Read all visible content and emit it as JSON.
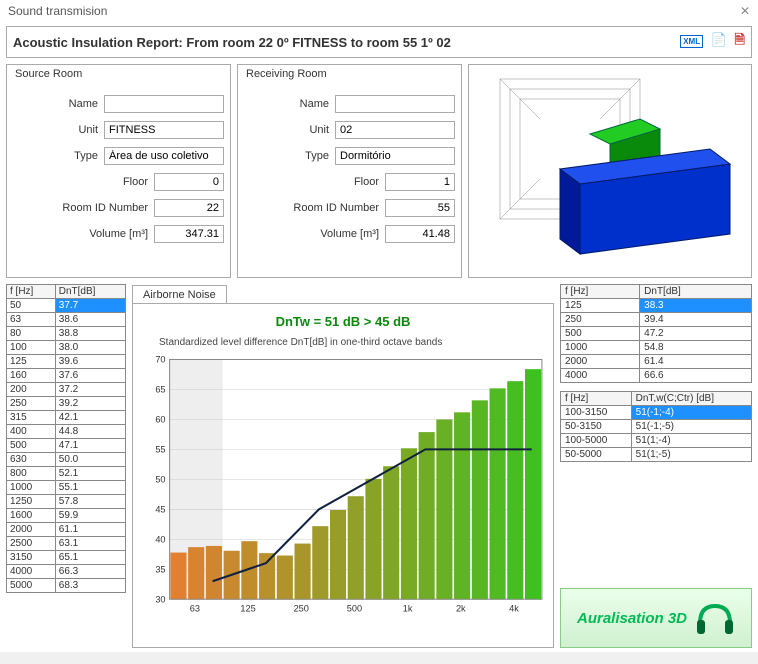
{
  "window": {
    "title": "Sound transmision"
  },
  "report": {
    "title": "Acoustic Insulation Report: From room 22  0º FITNESS to room 55  1º 02"
  },
  "source_room": {
    "panel_title": "Source Room",
    "labels": {
      "name": "Name",
      "unit": "Unit",
      "type": "Type",
      "floor": "Floor",
      "room_id": "Room ID Number",
      "volume": "Volume [m³]"
    },
    "name": "",
    "unit": "FITNESS",
    "type": "Área de uso coletivo",
    "floor": "0",
    "room_id": "22",
    "volume": "347.31"
  },
  "receiving_room": {
    "panel_title": "Receiving Room",
    "labels": {
      "name": "Name",
      "unit": "Unit",
      "type": "Type",
      "floor": "Floor",
      "room_id": "Room ID Number",
      "volume": "Volume [m³]"
    },
    "name": "",
    "unit": "02",
    "type": "Dormitório",
    "floor": "1",
    "room_id": "55",
    "volume": "41.48"
  },
  "left_table": {
    "headers": [
      "f [Hz]",
      "DnT[dB]"
    ],
    "rows": [
      [
        "50",
        "37.7"
      ],
      [
        "63",
        "38.6"
      ],
      [
        "80",
        "38.8"
      ],
      [
        "100",
        "38.0"
      ],
      [
        "125",
        "39.6"
      ],
      [
        "160",
        "37.6"
      ],
      [
        "200",
        "37.2"
      ],
      [
        "250",
        "39.2"
      ],
      [
        "315",
        "42.1"
      ],
      [
        "400",
        "44.8"
      ],
      [
        "500",
        "47.1"
      ],
      [
        "630",
        "50.0"
      ],
      [
        "800",
        "52.1"
      ],
      [
        "1000",
        "55.1"
      ],
      [
        "1250",
        "57.8"
      ],
      [
        "1600",
        "59.9"
      ],
      [
        "2000",
        "61.1"
      ],
      [
        "2500",
        "63.1"
      ],
      [
        "3150",
        "65.1"
      ],
      [
        "4000",
        "66.3"
      ],
      [
        "5000",
        "68.3"
      ]
    ],
    "selected_index": 0
  },
  "chart": {
    "tab_label": "Airborne Noise",
    "title": "DnTw = 51 dB > 45 dB",
    "subtitle": "Standardized level difference DnT[dB] in one-third octave bands",
    "y_min": 30,
    "y_max": 70,
    "y_step": 5,
    "x_labels": [
      "63",
      "125",
      "250",
      "500",
      "1k",
      "2k",
      "4k"
    ],
    "bars": [
      {
        "f": "50",
        "v": 37.7
      },
      {
        "f": "63",
        "v": 38.6
      },
      {
        "f": "80",
        "v": 38.8
      },
      {
        "f": "100",
        "v": 38.0
      },
      {
        "f": "125",
        "v": 39.6
      },
      {
        "f": "160",
        "v": 37.6
      },
      {
        "f": "200",
        "v": 37.2
      },
      {
        "f": "250",
        "v": 39.2
      },
      {
        "f": "315",
        "v": 42.1
      },
      {
        "f": "400",
        "v": 44.8
      },
      {
        "f": "500",
        "v": 47.1
      },
      {
        "f": "630",
        "v": 50.0
      },
      {
        "f": "800",
        "v": 52.1
      },
      {
        "f": "1000",
        "v": 55.1
      },
      {
        "f": "1250",
        "v": 57.8
      },
      {
        "f": "1600",
        "v": 59.9
      },
      {
        "f": "2000",
        "v": 61.1
      },
      {
        "f": "2500",
        "v": 63.1
      },
      {
        "f": "3150",
        "v": 65.1
      },
      {
        "f": "4000",
        "v": 66.3
      },
      {
        "f": "5000",
        "v": 68.3
      }
    ],
    "bar_gradient": {
      "low": "#e08030",
      "high": "#40c020"
    },
    "ref_curve": [
      {
        "x": 2,
        "y": 33
      },
      {
        "x": 5,
        "y": 36
      },
      {
        "x": 8,
        "y": 45
      },
      {
        "x": 11,
        "y": 50
      },
      {
        "x": 14,
        "y": 55
      },
      {
        "x": 17,
        "y": 55
      },
      {
        "x": 20,
        "y": 55
      }
    ],
    "background": "#ffffff",
    "line_color": "#102040"
  },
  "right_table1": {
    "headers": [
      "f [Hz]",
      "DnT[dB]"
    ],
    "rows": [
      [
        "125",
        "38.3"
      ],
      [
        "250",
        "39.4"
      ],
      [
        "500",
        "47.2"
      ],
      [
        "1000",
        "54.8"
      ],
      [
        "2000",
        "61.4"
      ],
      [
        "4000",
        "66.6"
      ]
    ],
    "selected_index": 0
  },
  "right_table2": {
    "headers": [
      "f [Hz]",
      "DnT,w(C;Ctr) [dB]"
    ],
    "rows": [
      [
        "100-3150",
        "51(-1;-4)"
      ],
      [
        "50-3150",
        "51(-1;-5)"
      ],
      [
        "100-5000",
        "51(1;-4)"
      ],
      [
        "50-5000",
        "51(1;-5)"
      ]
    ],
    "selected_index": 0
  },
  "logo_text": "Auralisation 3D"
}
